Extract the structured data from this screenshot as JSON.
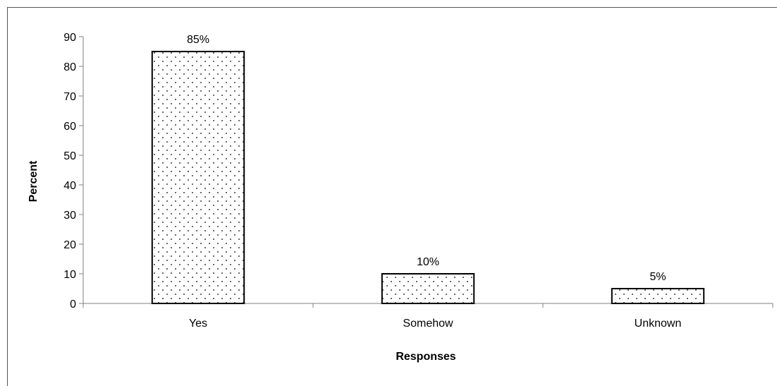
{
  "chart_data": {
    "type": "bar",
    "categories": [
      "Yes",
      "Somehow",
      "Unknown"
    ],
    "values": [
      85,
      10,
      5
    ],
    "data_labels": [
      "85%",
      "10%",
      "5%"
    ],
    "title": "",
    "xlabel": "Responses",
    "ylabel": "Percent",
    "ylim": [
      0,
      90
    ],
    "yticks": [
      0,
      10,
      20,
      30,
      40,
      50,
      60,
      70,
      80,
      90
    ],
    "grid": false,
    "legend": "none",
    "bar_fill": "dotted",
    "bar_stroke": "#000000",
    "axis_color": "#808080"
  }
}
